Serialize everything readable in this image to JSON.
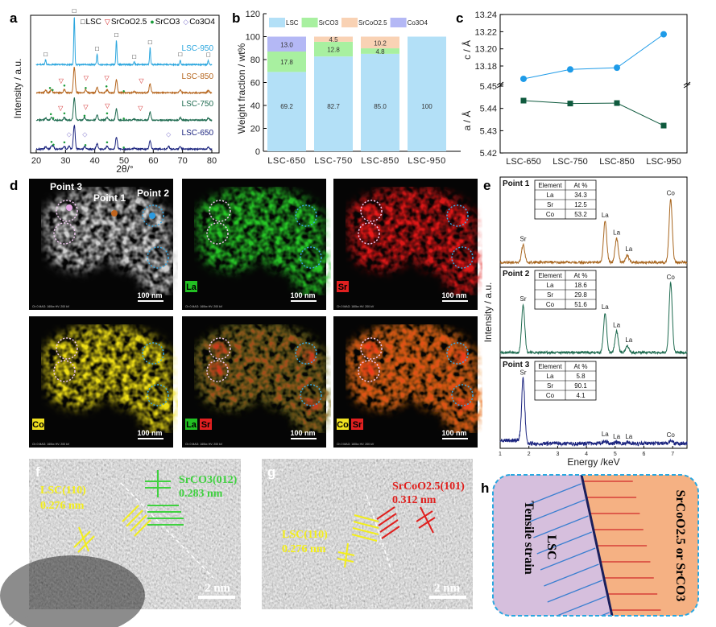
{
  "panel_labels": {
    "a": "a",
    "b": "b",
    "c": "c",
    "d": "d",
    "e": "e",
    "f": "f",
    "g": "g",
    "h": "h"
  },
  "watermark": "大数跨境",
  "colors": {
    "lsc950": "#2ba6de",
    "lsc850": "#b5651d",
    "lsc750": "#1f6b50",
    "lsc650": "#1a237e",
    "lsc_bar": "#b3e0f7",
    "srco3_bar": "#a8f0a0",
    "srcoo25_bar": "#f9d2b4",
    "co3o4_bar": "#b4b8f5"
  },
  "chart_data": [
    {
      "id": "a",
      "type": "line",
      "xlabel": "2θ/°",
      "ylabel": "Intensity / a.u.",
      "xlim": [
        20,
        80
      ],
      "xticks": [
        "20",
        "30",
        "40",
        "50",
        "60",
        "70",
        "80"
      ],
      "legend": [
        {
          "symbol": "□",
          "label": "LSC"
        },
        {
          "symbol": "▽",
          "label": "SrCoO2.5"
        },
        {
          "symbol": "●",
          "label": "SrCO3"
        },
        {
          "symbol": "◇",
          "label": "Co3O4"
        }
      ],
      "legend_placement": "top",
      "series": [
        {
          "name": "LSC-950",
          "color": "#2ba6de",
          "peaks_2theta": [
            23.2,
            33.0,
            40.8,
            47.4,
            53.5,
            58.9,
            69.2,
            78.8
          ],
          "markers": {
            "LSC": [
              23.2,
              33.0,
              40.8,
              47.4,
              53.5,
              58.9,
              69.2,
              78.8
            ]
          }
        },
        {
          "name": "LSC-850",
          "color": "#b5651d",
          "peaks_2theta": [
            23.2,
            25.2,
            29.6,
            33.0,
            36.9,
            40.8,
            44.2,
            47.4,
            53.5,
            58.9,
            69.2,
            78.8
          ],
          "markers": {
            "SrCO3": [
              24.7,
              25.6,
              29.6,
              36.9,
              44.0,
              49.9
            ],
            "SrCoO2.5": [
              28.5,
              37.0,
              44.1,
              55.9
            ]
          }
        },
        {
          "name": "LSC-750",
          "color": "#1f6b50",
          "peaks_2theta": [
            23.2,
            25.2,
            29.6,
            33.0,
            36.5,
            40.8,
            44.2,
            47.4,
            53.5,
            58.9,
            69.2,
            78.8
          ],
          "markers": {
            "SrCO3": [
              25.0,
              25.8,
              29.6,
              36.5,
              44.2,
              49.9
            ],
            "SrCoO2.5": [
              28.3,
              36.9,
              44.3,
              55.6
            ]
          }
        },
        {
          "name": "LSC-650",
          "color": "#1a237e",
          "peaks_2theta": [
            23.2,
            25.2,
            25.8,
            29.6,
            31.2,
            33.0,
            36.6,
            40.8,
            44.2,
            47.4,
            53.5,
            58.9,
            65.2,
            69.2,
            78.8
          ],
          "markers": {
            "SrCO3": [
              25.2,
              25.9,
              29.6,
              36.8,
              44.2,
              49.9
            ],
            "Co3O4": [
              31.2,
              36.6,
              65.2
            ]
          }
        }
      ]
    },
    {
      "id": "b",
      "type": "bar",
      "stacked": true,
      "ylabel": "Weight fraction / wt%",
      "ylim": [
        0,
        120
      ],
      "yticks": [
        "0",
        "20",
        "40",
        "60",
        "80",
        "100",
        "120"
      ],
      "categories": [
        "LSC-650",
        "LSC-750",
        "LSC-850",
        "LSC-950"
      ],
      "legend_placement": "top",
      "series": [
        {
          "name": "LSC",
          "color": "#b3e0f7",
          "values": [
            69.2,
            82.7,
            85.0,
            100
          ],
          "labels": [
            "69.2",
            "82.7",
            "85.0",
            "100"
          ]
        },
        {
          "name": "SrCO3",
          "color": "#a8f0a0",
          "values": [
            17.8,
            12.8,
            4.8,
            0
          ],
          "labels": [
            "17.8",
            "12.8",
            "4.8",
            ""
          ]
        },
        {
          "name": "SrCoO2.5",
          "color": "#f9d2b4",
          "values": [
            0,
            4.5,
            10.2,
            0
          ],
          "labels": [
            "",
            "4.5",
            "10.2",
            ""
          ]
        },
        {
          "name": "Co3O4",
          "color": "#b4b8f5",
          "values": [
            13.0,
            0,
            0,
            0
          ],
          "labels": [
            "13.0",
            "",
            "",
            ""
          ]
        }
      ]
    },
    {
      "id": "c",
      "type": "line",
      "categories": [
        "LSC-650",
        "LSC-750",
        "LSC-850",
        "LSC-950"
      ],
      "series": [
        {
          "name": "c",
          "ylabel": "c / Å",
          "color": "#1e9be8",
          "marker": "circle",
          "values": [
            13.165,
            13.176,
            13.178,
            13.217
          ],
          "ylim": [
            13.16,
            13.24
          ],
          "yticks": [
            "13.18",
            "13.20",
            "13.22",
            "13.24"
          ]
        },
        {
          "name": "a",
          "ylabel": "a / Å",
          "color": "#0f5a3e",
          "marker": "square",
          "values": [
            5.4435,
            5.4422,
            5.4424,
            5.4323
          ],
          "ylim": [
            5.42,
            5.45
          ],
          "yticks": [
            "5.42",
            "5.43",
            "5.44",
            "5.45"
          ]
        }
      ],
      "axis_break": true
    },
    {
      "id": "e",
      "type": "line",
      "xlabel": "Energy /keV",
      "ylabel": "Intensity / a.u.",
      "xlim": [
        1,
        7.5
      ],
      "xticks": [
        "1",
        "2",
        "3",
        "4",
        "5",
        "6",
        "7"
      ],
      "table_headers": [
        "Element",
        "At %"
      ],
      "spectra": [
        {
          "name": "Point 1",
          "color": "#a8661f",
          "table": [
            [
              "La",
              "34.3"
            ],
            [
              "Sr",
              "12.5"
            ],
            [
              "Co",
              "53.2"
            ]
          ],
          "peaks": [
            {
              "label": "Sr",
              "keV": 1.8,
              "rel": 0.22
            },
            {
              "label": "La",
              "keV": 4.65,
              "rel": 0.52
            },
            {
              "label": "La",
              "keV": 5.05,
              "rel": 0.3
            },
            {
              "label": "La",
              "keV": 5.42,
              "rel": 0.09
            },
            {
              "label": "Co",
              "keV": 6.93,
              "rel": 0.8
            }
          ]
        },
        {
          "name": "Point 2",
          "color": "#1f6b50",
          "table": [
            [
              "La",
              "18.6"
            ],
            [
              "Sr",
              "29.8"
            ],
            [
              "Co",
              "51.6"
            ]
          ],
          "peaks": [
            {
              "label": "Sr",
              "keV": 1.8,
              "rel": 0.6
            },
            {
              "label": "La",
              "keV": 4.65,
              "rel": 0.5
            },
            {
              "label": "La",
              "keV": 5.05,
              "rel": 0.27
            },
            {
              "label": "La",
              "keV": 5.42,
              "rel": 0.08
            },
            {
              "label": "Co",
              "keV": 6.93,
              "rel": 0.88
            }
          ]
        },
        {
          "name": "Point 3",
          "color": "#1a237e",
          "table": [
            [
              "La",
              "5.8"
            ],
            [
              "Sr",
              "90.1"
            ],
            [
              "Co",
              "4.1"
            ]
          ],
          "peaks": [
            {
              "label": "Sr",
              "keV": 1.8,
              "rel": 0.82
            },
            {
              "label": "La",
              "keV": 4.65,
              "rel": 0.04
            },
            {
              "label": "La",
              "keV": 5.05,
              "rel": 0.01
            },
            {
              "label": "La",
              "keV": 5.42,
              "rel": 0.01
            },
            {
              "label": "Co",
              "keV": 6.93,
              "rel": 0.03
            }
          ]
        }
      ]
    }
  ],
  "panel_d": {
    "points": [
      "Point 3",
      "Point 1",
      "Point 2"
    ],
    "scale_bar": "100 nm",
    "footer": "Ch 0   MAG: 160kx   HV: 200 kV",
    "maps": [
      {
        "labels": []
      },
      {
        "labels": [
          {
            "text": "La",
            "color": "#22c022"
          }
        ]
      },
      {
        "labels": [
          {
            "text": "Sr",
            "color": "#e02020"
          }
        ]
      },
      {
        "labels": [
          {
            "text": "Co",
            "color": "#f0e020"
          }
        ]
      },
      {
        "labels": [
          {
            "text": "La",
            "color": "#22c022"
          },
          {
            "text": "Sr",
            "color": "#e02020"
          }
        ]
      },
      {
        "labels": [
          {
            "text": "Co",
            "color": "#f0e020"
          },
          {
            "text": "Sr",
            "color": "#e02020"
          }
        ]
      }
    ]
  },
  "panel_f": {
    "lsc": "LSC(110)",
    "lsc_d": "0.276 nm",
    "other": "SrCO3(012)",
    "other_d": "0.283 nm",
    "scale": "2 nm"
  },
  "panel_g": {
    "lsc": "LSC(110)",
    "lsc_d": "0.276 nm",
    "other": "SrCoO2.5(101)",
    "other_d": "0.312 nm",
    "scale": "2 nm"
  },
  "panel_h": {
    "left_1": "LSC",
    "left_2": "Tensile strain",
    "right": "SrCoO2.5 or SrCO3"
  }
}
